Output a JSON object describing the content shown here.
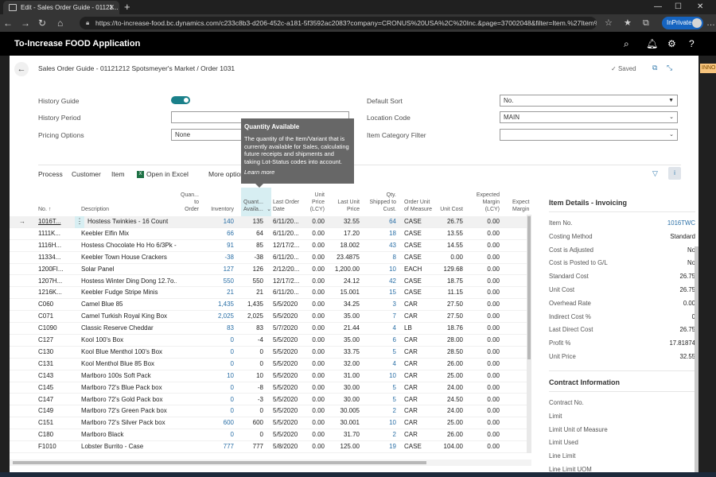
{
  "browser": {
    "tab_title": "Edit - Sales Order Guide - 01121...",
    "url": "https://to-increase-food.bc.dynamics.com/c233c8b3-d206-452c-a181-5f3592ac2083?company=CRONUS%20USA%2C%20Inc.&page=37002048&filter=Item.%27Item%20Categ...",
    "inprivate_label": "InPrivate"
  },
  "app": {
    "title": "To-Increase FOOD Application",
    "tag": "INNO"
  },
  "page": {
    "title": "Sales Order Guide - 01121212 Spotsmeyer's Market / Order 1031",
    "saved_label": "Saved"
  },
  "fields": {
    "history_guide_label": "History Guide",
    "history_period_label": "History Period",
    "history_period_value": "",
    "pricing_options_label": "Pricing Options",
    "pricing_options_value": "None",
    "default_sort_label": "Default Sort",
    "default_sort_value": "No.",
    "location_code_label": "Location Code",
    "location_code_value": "MAIN",
    "item_category_filter_label": "Item Category Filter",
    "item_category_filter_value": ""
  },
  "actions": {
    "process": "Process",
    "customer": "Customer",
    "item": "Item",
    "open_in_excel": "Open in Excel",
    "more_options": "More options"
  },
  "tooltip": {
    "title": "Quantity Available",
    "body": "The quantity of the Item/Variant that is currently available for Sales, calculating future receipts and shipments and taking Lot-Status codes into account.",
    "link": "Learn more"
  },
  "grid": {
    "headers": {
      "no": "No. ↑",
      "description": "Description",
      "qty_to_order": "Quan... to Order",
      "inventory": "Inventory",
      "qty_available": "Quant... Availa...",
      "last_order_date": "Last Order Date",
      "unit_price": "Unit Price (LCY)",
      "last_unit_price": "Last Unit Price",
      "qty_shipped": "Qty. Shipped to Cust.",
      "uom": "Order Unit of Measure",
      "unit_cost": "Unit Cost",
      "expected_margin": "Expected Margin (LCY)",
      "expected_margin2": "Expect Margin"
    },
    "rows": [
      {
        "no": "1016T...",
        "desc": "Hostess Twinkies - 16 Count",
        "inv": "140",
        "avail": "135",
        "date": "6/11/20...",
        "price": "0.00",
        "last": "32.55",
        "ship": "64",
        "uom": "CASE",
        "cost": "26.75",
        "margin": "0.00"
      },
      {
        "no": "1111K...",
        "desc": "Keebler Elfin Mix",
        "inv": "66",
        "avail": "64",
        "date": "6/11/20...",
        "price": "0.00",
        "last": "17.20",
        "ship": "18",
        "uom": "CASE",
        "cost": "13.55",
        "margin": "0.00"
      },
      {
        "no": "1116H...",
        "desc": "Hostess Chocolate Ho Ho 6/3Pk -...",
        "inv": "91",
        "avail": "85",
        "date": "12/17/2...",
        "price": "0.00",
        "last": "18.002",
        "ship": "43",
        "uom": "CASE",
        "cost": "14.55",
        "margin": "0.00"
      },
      {
        "no": "11334...",
        "desc": "Keebler Town House Crackers",
        "inv": "-38",
        "avail": "-38",
        "date": "6/11/20...",
        "price": "0.00",
        "last": "23.4875",
        "ship": "8",
        "uom": "CASE",
        "cost": "0.00",
        "margin": "0.00"
      },
      {
        "no": "1200FI...",
        "desc": "Solar Panel",
        "inv": "127",
        "avail": "126",
        "date": "2/12/20...",
        "price": "0.00",
        "last": "1,200.00",
        "ship": "10",
        "uom": "EACH",
        "cost": "129.68",
        "margin": "0.00"
      },
      {
        "no": "1207H...",
        "desc": "Hostess Winter Ding Dong 12.7o...",
        "inv": "550",
        "avail": "550",
        "date": "12/17/2...",
        "price": "0.00",
        "last": "24.12",
        "ship": "42",
        "uom": "CASE",
        "cost": "18.75",
        "margin": "0.00"
      },
      {
        "no": "1216K...",
        "desc": "Keebler Fudge Stripe Minis",
        "inv": "21",
        "avail": "21",
        "date": "6/11/20...",
        "price": "0.00",
        "last": "15.001",
        "ship": "15",
        "uom": "CASE",
        "cost": "11.15",
        "margin": "0.00"
      },
      {
        "no": "C060",
        "desc": "Camel Blue 85",
        "inv": "1,435",
        "avail": "1,435",
        "date": "5/5/2020",
        "price": "0.00",
        "last": "34.25",
        "ship": "3",
        "uom": "CAR",
        "cost": "27.50",
        "margin": "0.00"
      },
      {
        "no": "C071",
        "desc": "Camel Turkish Royal King Box",
        "inv": "2,025",
        "avail": "2,025",
        "date": "5/5/2020",
        "price": "0.00",
        "last": "35.00",
        "ship": "7",
        "uom": "CAR",
        "cost": "27.50",
        "margin": "0.00"
      },
      {
        "no": "C1090",
        "desc": "Classic Reserve Cheddar",
        "inv": "83",
        "avail": "83",
        "date": "5/7/2020",
        "price": "0.00",
        "last": "21.44",
        "ship": "4",
        "uom": "LB",
        "cost": "18.76",
        "margin": "0.00"
      },
      {
        "no": "C127",
        "desc": "Kool 100's Box",
        "inv": "0",
        "avail": "-4",
        "date": "5/5/2020",
        "price": "0.00",
        "last": "35.00",
        "ship": "6",
        "uom": "CAR",
        "cost": "28.00",
        "margin": "0.00"
      },
      {
        "no": "C130",
        "desc": "Kool Blue Menthol 100's Box",
        "inv": "0",
        "avail": "0",
        "date": "5/5/2020",
        "price": "0.00",
        "last": "33.75",
        "ship": "5",
        "uom": "CAR",
        "cost": "28.50",
        "margin": "0.00"
      },
      {
        "no": "C131",
        "desc": "Kool Menthol Blue 85 Box",
        "inv": "0",
        "avail": "0",
        "date": "5/5/2020",
        "price": "0.00",
        "last": "32.00",
        "ship": "4",
        "uom": "CAR",
        "cost": "26.00",
        "margin": "0.00"
      },
      {
        "no": "C143",
        "desc": "Marlboro 100s Soft Pack",
        "inv": "10",
        "avail": "10",
        "date": "5/5/2020",
        "price": "0.00",
        "last": "31.00",
        "ship": "10",
        "uom": "CAR",
        "cost": "25.00",
        "margin": "0.00"
      },
      {
        "no": "C145",
        "desc": "Marlboro 72's Blue Pack box",
        "inv": "0",
        "avail": "-8",
        "date": "5/5/2020",
        "price": "0.00",
        "last": "30.00",
        "ship": "5",
        "uom": "CAR",
        "cost": "24.00",
        "margin": "0.00"
      },
      {
        "no": "C147",
        "desc": "Marlboro 72's Gold Pack box",
        "inv": "0",
        "avail": "-3",
        "date": "5/5/2020",
        "price": "0.00",
        "last": "30.00",
        "ship": "5",
        "uom": "CAR",
        "cost": "24.50",
        "margin": "0.00"
      },
      {
        "no": "C149",
        "desc": "Marlboro 72's Green Pack box",
        "inv": "0",
        "avail": "0",
        "date": "5/5/2020",
        "price": "0.00",
        "last": "30.005",
        "ship": "2",
        "uom": "CAR",
        "cost": "24.00",
        "margin": "0.00"
      },
      {
        "no": "C151",
        "desc": "Marlboro 72's Silver Pack box",
        "inv": "600",
        "avail": "600",
        "date": "5/5/2020",
        "price": "0.00",
        "last": "30.001",
        "ship": "10",
        "uom": "CAR",
        "cost": "25.00",
        "margin": "0.00"
      },
      {
        "no": "C180",
        "desc": "Marlboro Black",
        "inv": "0",
        "avail": "0",
        "date": "5/5/2020",
        "price": "0.00",
        "last": "31.70",
        "ship": "2",
        "uom": "CAR",
        "cost": "26.00",
        "margin": "0.00"
      },
      {
        "no": "F1010",
        "desc": "Lobster Burrito - Case",
        "inv": "777",
        "avail": "777",
        "date": "5/8/2020",
        "price": "0.00",
        "last": "125.00",
        "ship": "19",
        "uom": "CASE",
        "cost": "104.00",
        "margin": "0.00"
      }
    ]
  },
  "factbox": {
    "section1_title": "Item Details - Invoicing",
    "section1": [
      {
        "label": "Item No.",
        "value": "1016TWC"
      },
      {
        "label": "Costing Method",
        "value": "Standard"
      },
      {
        "label": "Cost is Adjusted",
        "value": "No"
      },
      {
        "label": "Cost is Posted to G/L",
        "value": "No"
      },
      {
        "label": "Standard Cost",
        "value": "26.75"
      },
      {
        "label": "Unit Cost",
        "value": "26.75"
      },
      {
        "label": "Overhead Rate",
        "value": "0.00"
      },
      {
        "label": "Indirect Cost %",
        "value": "0"
      },
      {
        "label": "Last Direct Cost",
        "value": "26.75"
      },
      {
        "label": "Profit %",
        "value": "17.81874"
      },
      {
        "label": "Unit Price",
        "value": "32.55"
      }
    ],
    "section2_title": "Contract Information",
    "section2": [
      {
        "label": "Contract No.",
        "value": ""
      },
      {
        "label": "Limit",
        "value": ""
      },
      {
        "label": "Limit Unit of Measure",
        "value": ""
      },
      {
        "label": "Limit Used",
        "value": ""
      },
      {
        "label": "Line Limit",
        "value": ""
      },
      {
        "label": "Line Limit UOM",
        "value": ""
      }
    ]
  }
}
